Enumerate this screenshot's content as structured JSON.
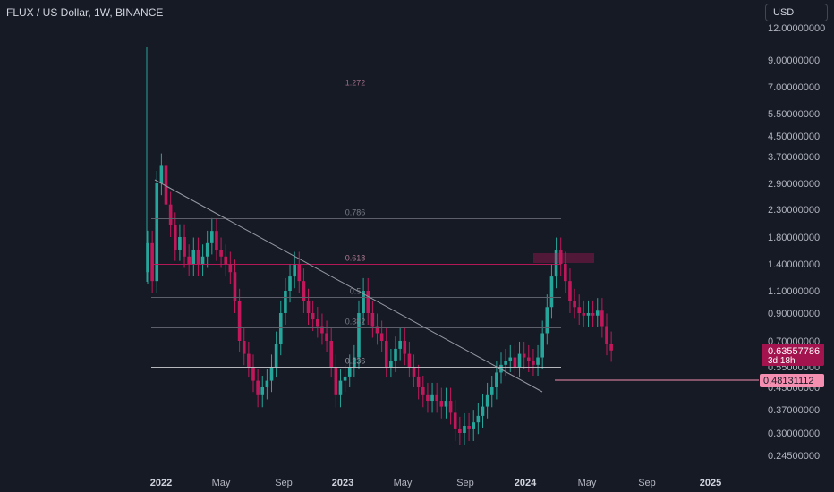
{
  "header": {
    "title": "FLUX / US Dollar, 1W, BINANCE",
    "currency": "USD"
  },
  "colors": {
    "background": "#161a25",
    "bull": "#26a69a",
    "bear": "#c2185b",
    "level_line": "#c2185b",
    "trend_line": "#9598a1",
    "price_tag": "#a3144f",
    "alert_tag": "#f48fb1"
  },
  "price_axis": {
    "scale": "log",
    "ticks": [
      "12.00000000",
      "9.00000000",
      "7.00000000",
      "5.50000000",
      "4.50000000",
      "3.70000000",
      "2.90000000",
      "2.30000000",
      "1.80000000",
      "1.40000000",
      "1.10000000",
      "0.90000000",
      "0.70000000",
      "0.55000000",
      "0.45000000",
      "0.37000000",
      "0.30000000",
      "0.24500000"
    ]
  },
  "time_axis": {
    "labels": [
      {
        "text": "2022",
        "bold": true
      },
      {
        "text": "May",
        "bold": false
      },
      {
        "text": "Sep",
        "bold": false
      },
      {
        "text": "2023",
        "bold": true
      },
      {
        "text": "May",
        "bold": false
      },
      {
        "text": "Sep",
        "bold": false
      },
      {
        "text": "2024",
        "bold": true
      },
      {
        "text": "May",
        "bold": false
      },
      {
        "text": "Sep",
        "bold": false
      },
      {
        "text": "2025",
        "bold": true
      }
    ]
  },
  "fib_levels": [
    {
      "label": "1.272",
      "price": 6.9
    },
    {
      "label": "0.786",
      "price": 2.12
    },
    {
      "label": "0.618",
      "price": 1.4
    },
    {
      "label": "0.5",
      "price": 1.04
    },
    {
      "label": "0.382",
      "price": 0.79
    },
    {
      "label": "0.236",
      "price": 0.55
    }
  ],
  "current_price": {
    "value": "0.63557786",
    "countdown": "3d 18h"
  },
  "alert_price": {
    "value": "0.48131112"
  },
  "chart_data": {
    "type": "candlestick",
    "series_close": [
      1.7,
      1.2,
      2.9,
      3.4,
      2.4,
      2.0,
      1.6,
      1.8,
      1.5,
      1.4,
      1.6,
      1.4,
      1.5,
      1.7,
      1.9,
      1.6,
      1.5,
      1.4,
      1.3,
      1.0,
      0.7,
      0.62,
      0.55,
      0.48,
      0.42,
      0.45,
      0.48,
      0.55,
      0.68,
      0.9,
      1.1,
      1.25,
      1.4,
      1.2,
      1.0,
      0.9,
      0.85,
      0.8,
      0.75,
      0.7,
      0.55,
      0.42,
      0.48,
      0.5,
      0.55,
      0.6,
      0.9,
      1.1,
      0.9,
      0.8,
      0.75,
      0.7,
      0.55,
      0.58,
      0.65,
      0.7,
      0.62,
      0.55,
      0.5,
      0.45,
      0.42,
      0.4,
      0.42,
      0.4,
      0.38,
      0.4,
      0.36,
      0.31,
      0.3,
      0.32,
      0.31,
      0.33,
      0.35,
      0.38,
      0.42,
      0.45,
      0.52,
      0.56,
      0.58,
      0.6,
      0.55,
      0.62,
      0.6,
      0.58,
      0.56,
      0.6,
      0.75,
      0.95,
      1.25,
      1.6,
      1.4,
      1.2,
      1.0,
      0.95,
      0.9,
      0.88,
      0.9,
      0.88,
      0.92,
      0.8,
      0.68,
      0.64
    ]
  }
}
